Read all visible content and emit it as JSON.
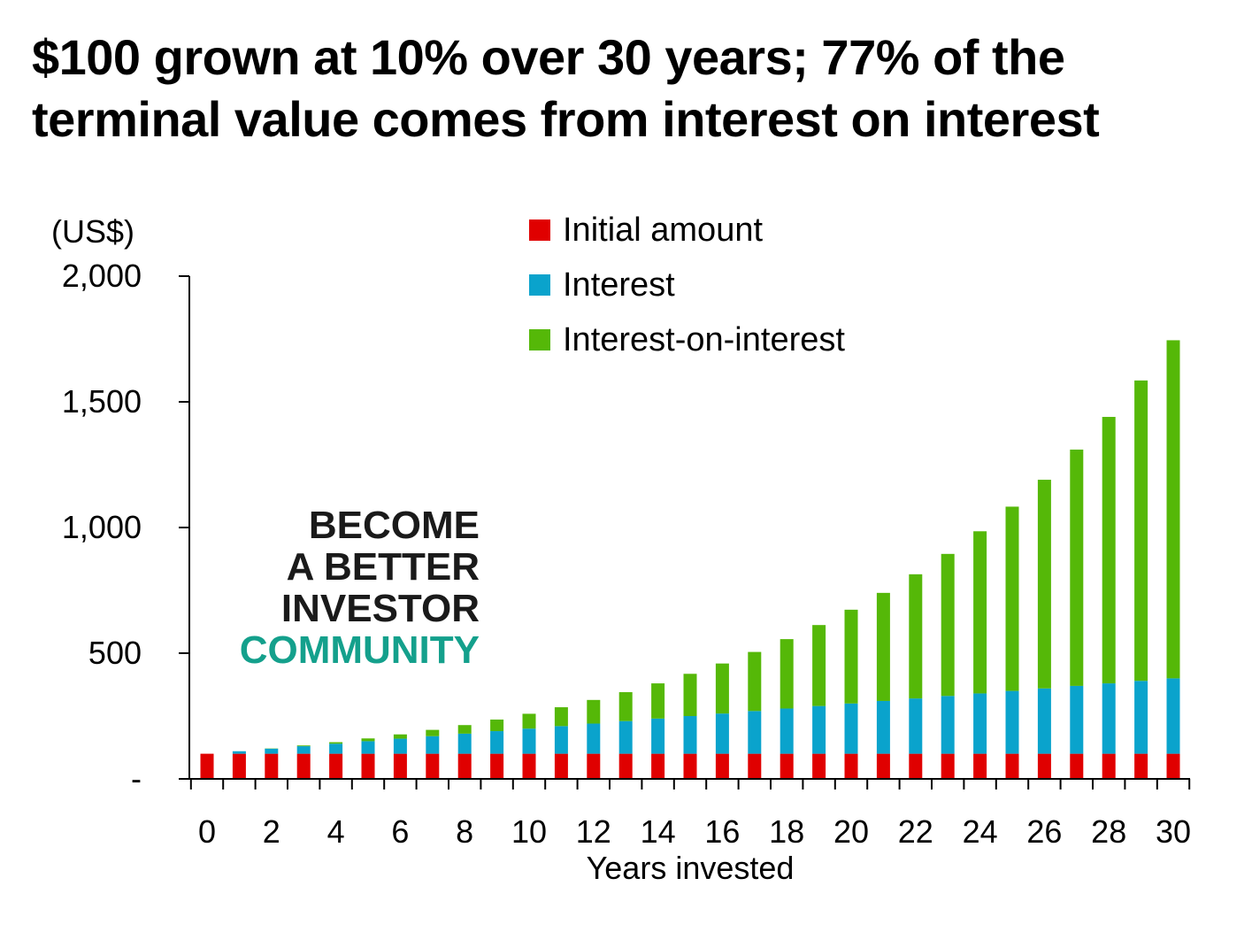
{
  "chart_data": {
    "type": "bar",
    "stacked": true,
    "title": "$100 grown at 10% over 30 years; 77% of the terminal value comes from interest on interest",
    "xlabel": "Years invested",
    "ylabel": "(US$)",
    "ylim": [
      0,
      2000
    ],
    "yticks": [
      0,
      500,
      1000,
      1500,
      2000
    ],
    "ytick_labels": [
      "-",
      "500",
      "1,000",
      "1,500",
      "2,000"
    ],
    "xtick_labels": [
      "0",
      "2",
      "4",
      "6",
      "8",
      "10",
      "12",
      "14",
      "16",
      "18",
      "20",
      "22",
      "24",
      "26",
      "28",
      "30"
    ],
    "x": [
      0,
      1,
      2,
      3,
      4,
      5,
      6,
      7,
      8,
      9,
      10,
      11,
      12,
      13,
      14,
      15,
      16,
      17,
      18,
      19,
      20,
      21,
      22,
      23,
      24,
      25,
      26,
      27,
      28,
      29,
      30
    ],
    "series": [
      {
        "name": "Initial amount",
        "color": "#e00000",
        "values": [
          100,
          100,
          100,
          100,
          100,
          100,
          100,
          100,
          100,
          100,
          100,
          100,
          100,
          100,
          100,
          100,
          100,
          100,
          100,
          100,
          100,
          100,
          100,
          100,
          100,
          100,
          100,
          100,
          100,
          100,
          100
        ]
      },
      {
        "name": "Interest",
        "color": "#0aa3cc",
        "values": [
          0,
          10,
          20,
          30,
          40,
          50,
          60,
          70,
          80,
          90,
          100,
          110,
          120,
          130,
          140,
          150,
          160,
          170,
          180,
          190,
          200,
          210,
          220,
          230,
          240,
          250,
          260,
          270,
          280,
          290,
          300
        ]
      },
      {
        "name": "Interest-on-interest",
        "color": "#55b808",
        "values": [
          0,
          0,
          1,
          3,
          6,
          11,
          17,
          25,
          34,
          46,
          59,
          75,
          94,
          115,
          140,
          168,
          199,
          235,
          276,
          322,
          373,
          430,
          494,
          565,
          645,
          733,
          830,
          940,
          1060,
          1195,
          1345
        ]
      }
    ],
    "legend_position": "top-center",
    "grid": false
  },
  "watermark": {
    "line1": "BECOME",
    "line2": "A BETTER",
    "line3": "INVESTOR",
    "line4": "COMMUNITY",
    "dark_color": "#1a1a1a",
    "accent_color": "#14a08c"
  }
}
